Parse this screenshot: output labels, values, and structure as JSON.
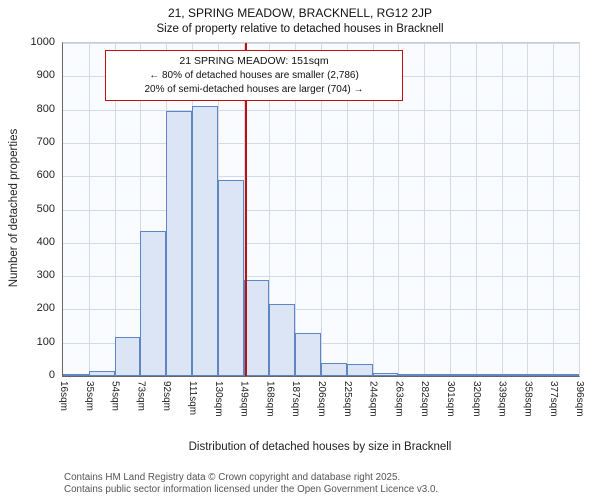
{
  "chart_data": {
    "type": "bar",
    "title": "21, SPRING MEADOW, BRACKNELL, RG12 2JP",
    "subtitle": "Size of property relative to detached houses in Bracknell",
    "xlabel": "Distribution of detached houses by size in Bracknell",
    "ylabel": "Number of detached properties",
    "ylim": [
      0,
      1000
    ],
    "ytick_step": 100,
    "grid": true,
    "bin_edges": [
      16,
      35,
      54,
      73,
      92,
      111,
      130,
      149,
      168,
      187,
      206,
      225,
      244,
      263,
      282,
      301,
      320,
      339,
      358,
      377,
      396
    ],
    "x_tick_labels": [
      "16sqm",
      "35sqm",
      "54sqm",
      "73sqm",
      "92sqm",
      "111sqm",
      "130sqm",
      "149sqm",
      "168sqm",
      "187sqm",
      "206sqm",
      "225sqm",
      "244sqm",
      "263sqm",
      "282sqm",
      "301sqm",
      "320sqm",
      "339sqm",
      "358sqm",
      "377sqm",
      "396sqm"
    ],
    "values": [
      3,
      15,
      118,
      435,
      795,
      810,
      590,
      288,
      215,
      128,
      40,
      35,
      10,
      6,
      5,
      3,
      2,
      2,
      1,
      3
    ],
    "marker_value": 151,
    "annotation": {
      "line1": "21 SPRING MEADOW: 151sqm",
      "line2": "← 80% of detached houses are smaller (2,786)",
      "line3": "20% of semi-detached houses are larger (704) →"
    },
    "colors": {
      "bar_fill": "#dbe5f6",
      "bar_border": "#5f86c4",
      "marker": "#bb1111",
      "grid": "#d4d9e8"
    }
  },
  "footer": {
    "line1": "Contains HM Land Registry data © Crown copyright and database right 2025.",
    "line2": "Contains public sector information licensed under the Open Government Licence v3.0."
  }
}
